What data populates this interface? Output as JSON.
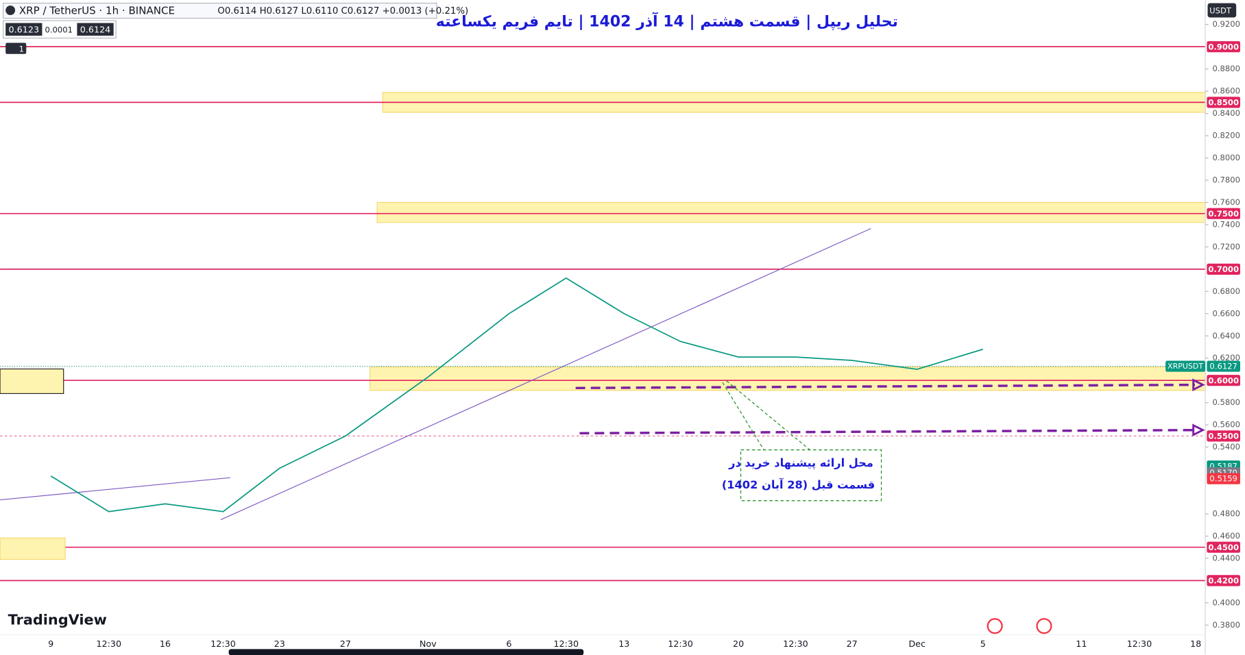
{
  "header": {
    "symbol": "XRP / TetherUS · 1h · BINANCE",
    "ohlc": "O0.6114 H0.6127 L0.6110 C0.6127 +0.0013 (+0.21%)",
    "bid": "0.6123",
    "spread": "0.0001",
    "ask": "0.6124",
    "indicator_count": "1",
    "currency": "USDT"
  },
  "chart_data": {
    "type": "line",
    "title": "تحلیل ریپل | قسمت هشتم | 14 آذر 1402 | تایم فریم یکساعته",
    "categories": [
      "9",
      "12:30",
      "16",
      "12:30",
      "23",
      "27",
      "Nov",
      "6",
      "12:30",
      "13",
      "12:30",
      "20",
      "12:30",
      "27",
      "Dec",
      "5",
      "11",
      "12:30",
      "18"
    ],
    "series": [
      {
        "name": "XRPUSDT",
        "color": "#089981",
        "values": [
          0.514,
          0.482,
          0.489,
          0.482,
          0.521,
          0.55,
          0.603,
          0.66,
          0.692,
          0.66,
          0.635,
          0.621,
          0.621,
          0.618,
          0.61,
          0.628,
          null,
          null,
          null
        ]
      }
    ],
    "last_price": {
      "value": 0.6127,
      "label": "0.6127"
    },
    "ylim": [
      0.372,
      0.942
    ],
    "yticks": [
      {
        "value": 0.92,
        "label": "0.9200"
      },
      {
        "value": 0.88,
        "label": "0.8800"
      },
      {
        "value": 0.86,
        "label": "0.8600"
      },
      {
        "value": 0.84,
        "label": "0.8400"
      },
      {
        "value": 0.82,
        "label": "0.8200"
      },
      {
        "value": 0.8,
        "label": "0.8000"
      },
      {
        "value": 0.78,
        "label": "0.7800"
      },
      {
        "value": 0.76,
        "label": "0.7600"
      },
      {
        "value": 0.74,
        "label": "0.7400"
      },
      {
        "value": 0.72,
        "label": "0.7200"
      },
      {
        "value": 0.68,
        "label": "0.6800"
      },
      {
        "value": 0.66,
        "label": "0.6600"
      },
      {
        "value": 0.64,
        "label": "0.6400"
      },
      {
        "value": 0.62,
        "label": "0.6200"
      },
      {
        "value": 0.58,
        "label": "0.5800"
      },
      {
        "value": 0.56,
        "label": "0.5600"
      },
      {
        "value": 0.54,
        "label": "0.5400"
      },
      {
        "value": 0.48,
        "label": "0.4800"
      },
      {
        "value": 0.46,
        "label": "0.4600"
      },
      {
        "value": 0.44,
        "label": "0.4400"
      },
      {
        "value": 0.4,
        "label": "0.4000"
      },
      {
        "value": 0.38,
        "label": "0.3800"
      }
    ],
    "levels": [
      {
        "value": 0.9,
        "label": "0.9000",
        "style": "solid"
      },
      {
        "value": 0.85,
        "label": "0.8500",
        "style": "solid"
      },
      {
        "value": 0.75,
        "label": "0.7500",
        "style": "solid"
      },
      {
        "value": 0.7,
        "label": "0.7000",
        "style": "solid"
      },
      {
        "value": 0.6,
        "label": "0.6000",
        "style": "solid"
      },
      {
        "value": 0.55,
        "label": "0.5500",
        "style": "dashed"
      },
      {
        "value": 0.45,
        "label": "0.4500",
        "style": "solid"
      },
      {
        "value": 0.42,
        "label": "0.4200",
        "style": "solid"
      }
    ],
    "level_color": "#e0245e",
    "zones": [
      [
        0.841,
        0.859
      ],
      [
        0.742,
        0.76
      ],
      [
        0.591,
        0.612
      ]
    ],
    "markers": [
      {
        "value": 0.5187,
        "label": "0.5187",
        "color": "#089981"
      },
      {
        "value": 0.517,
        "label": "0.5170",
        "color": "#787b86"
      },
      {
        "value": 0.5159,
        "label": "0.5159",
        "color": "#f23645"
      }
    ],
    "annotation": [
      "محل ارائه پیشنهاد خرید در",
      "قسمت قبل (28 آبان 1402)"
    ],
    "watermark": "TradingView",
    "grid": false
  }
}
